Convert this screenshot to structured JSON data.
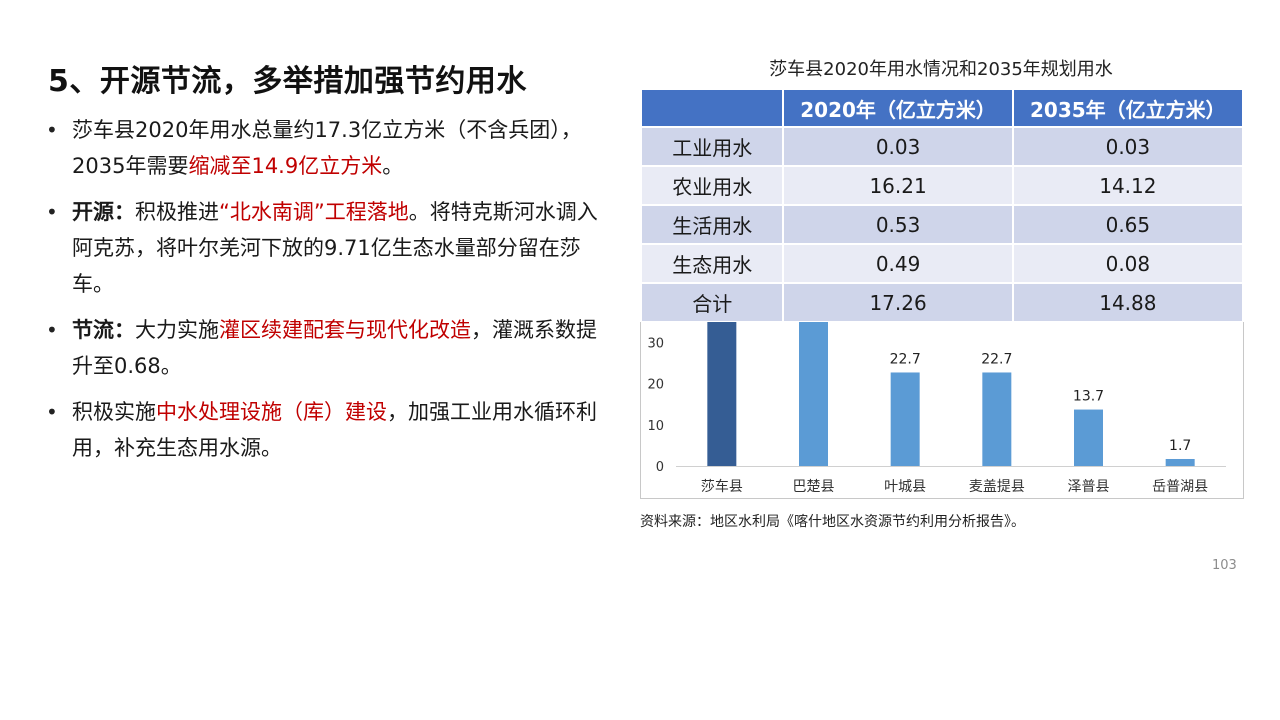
{
  "slide": {
    "title": "5、开源节流，多举措加强节约用水",
    "page_number": "103"
  },
  "bullets": [
    {
      "parts": [
        {
          "text": "莎车县2020年用水总量约17.3亿立方米（不含兵团），2035年需要"
        },
        {
          "text": "缩减至14.9亿立方米",
          "red": true
        },
        {
          "text": "。"
        }
      ]
    },
    {
      "parts": [
        {
          "text": "开源：",
          "bold": true
        },
        {
          "text": "积极推进"
        },
        {
          "text": "“北水南调”工程落地",
          "red": true
        },
        {
          "text": "。将特克斯河水调入阿克苏，将叶尔羌河下放的9.71亿生态水量部分留在莎车。"
        }
      ]
    },
    {
      "parts": [
        {
          "text": "节流：",
          "bold": true
        },
        {
          "text": "大力实施"
        },
        {
          "text": "灌区续建配套与现代化改造",
          "red": true
        },
        {
          "text": "，灌溉系数提升至0.68。"
        }
      ]
    },
    {
      "parts": [
        {
          "text": "积极实施"
        },
        {
          "text": "中水处理设施（库）建设",
          "red": true
        },
        {
          "text": "，加强工业用水循环利用，补充生态用水源。"
        }
      ]
    }
  ],
  "table": {
    "caption": "莎车县2020年用水情况和2035年规划用水",
    "headers": [
      "",
      "2020年（亿立方米）",
      "2035年（亿立方米）"
    ],
    "rows": [
      [
        "工业用水",
        "0.03",
        "0.03"
      ],
      [
        "农业用水",
        "16.21",
        "14.12"
      ],
      [
        "生活用水",
        "0.53",
        "0.65"
      ],
      [
        "生态用水",
        "0.49",
        "0.08"
      ],
      [
        "合计",
        "17.26",
        "14.88"
      ]
    ],
    "header_color": "#4472c4",
    "row_color_odd": "#cfd5ea",
    "row_color_even": "#e9ebf5"
  },
  "chart_data": {
    "type": "bar",
    "title": "",
    "xlabel": "",
    "ylabel": "",
    "categories": [
      "莎车县",
      "巴楚县",
      "叶城县",
      "麦盖提县",
      "泽普县",
      "岳普湖县"
    ],
    "values": [
      35.5,
      35.5,
      22.7,
      22.7,
      13.7,
      1.7
    ],
    "data_labels": [
      "",
      "",
      "22.7",
      "22.7",
      "13.7",
      "1.7"
    ],
    "yticks": [
      "0",
      "10",
      "20",
      "30"
    ],
    "ylim": [
      0,
      35
    ],
    "grid": false,
    "legend": "none",
    "colors": {
      "highlight": "#355d94",
      "default": "#5b9bd5"
    },
    "highlight_index": 0
  },
  "source": "资料来源：地区水利局《喀什地区水资源节约利用分析报告》。"
}
